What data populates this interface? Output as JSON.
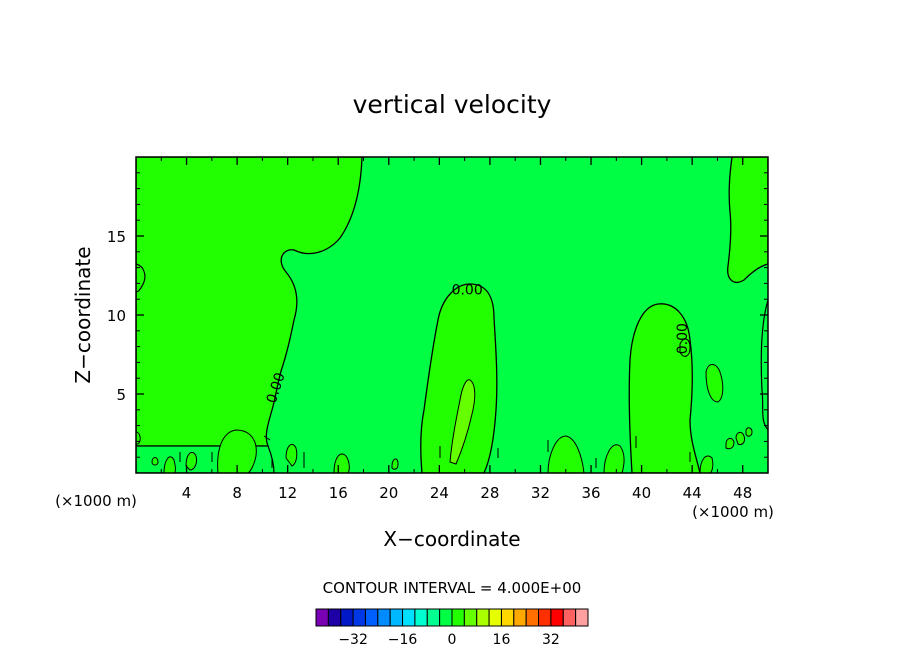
{
  "chart_data": {
    "type": "contour",
    "title": "vertical velocity",
    "xlabel": "X−coordinate",
    "ylabel": "Z−coordinate",
    "x_unit_left": "(×1000 m)",
    "x_unit_right": "(×1000 m)",
    "xlim": [
      0,
      50
    ],
    "ylim": [
      0,
      20
    ],
    "x_ticks": [
      4,
      8,
      12,
      16,
      20,
      24,
      28,
      32,
      36,
      40,
      44,
      48
    ],
    "y_ticks": [
      5,
      10,
      15
    ],
    "x_tick_labels": [
      "4",
      "8",
      "12",
      "16",
      "20",
      "24",
      "28",
      "32",
      "36",
      "40",
      "44",
      "48"
    ],
    "y_tick_labels": [
      "5",
      "10",
      "15"
    ],
    "background_color": "#00ff44",
    "contour_labels": [
      {
        "text": "0.00",
        "x": 26.2,
        "y": 11.3,
        "rotation": 0
      },
      {
        "text": "0.00",
        "x": 11.4,
        "y": 5.3,
        "rotation": -72
      },
      {
        "text": "0.00",
        "x": 43.6,
        "y": 8.5,
        "rotation": -90
      }
    ],
    "contour_interval_label": "CONTOUR INTERVAL = 4.000E+00",
    "colorbar": {
      "colors": [
        "#7a00b4",
        "#1e00a6",
        "#0018c8",
        "#0038e6",
        "#0060ff",
        "#008cff",
        "#00b8ff",
        "#00e0ff",
        "#00ffd0",
        "#00ff90",
        "#00ff44",
        "#22ff00",
        "#66ff00",
        "#aaff00",
        "#e6ff00",
        "#ffd800",
        "#ffa800",
        "#ff7000",
        "#ff3000",
        "#ff0000",
        "#ff6060",
        "#ffa0a0"
      ],
      "tick_labels": [
        "−32",
        "−16",
        "0",
        "16",
        "32"
      ],
      "tick_values": [
        -32,
        -16,
        0,
        16,
        32
      ],
      "value_min": -44,
      "value_max": 44
    },
    "regions": [
      {
        "name": "upper-left-positive-region",
        "color": "#22ff00"
      },
      {
        "name": "center-updraft-region",
        "color": "#22ff00"
      },
      {
        "name": "center-updraft-core",
        "color": "#66ff00"
      },
      {
        "name": "right-updraft-region",
        "color": "#22ff00"
      },
      {
        "name": "upper-right-positive-region",
        "color": "#22ff00"
      }
    ]
  }
}
